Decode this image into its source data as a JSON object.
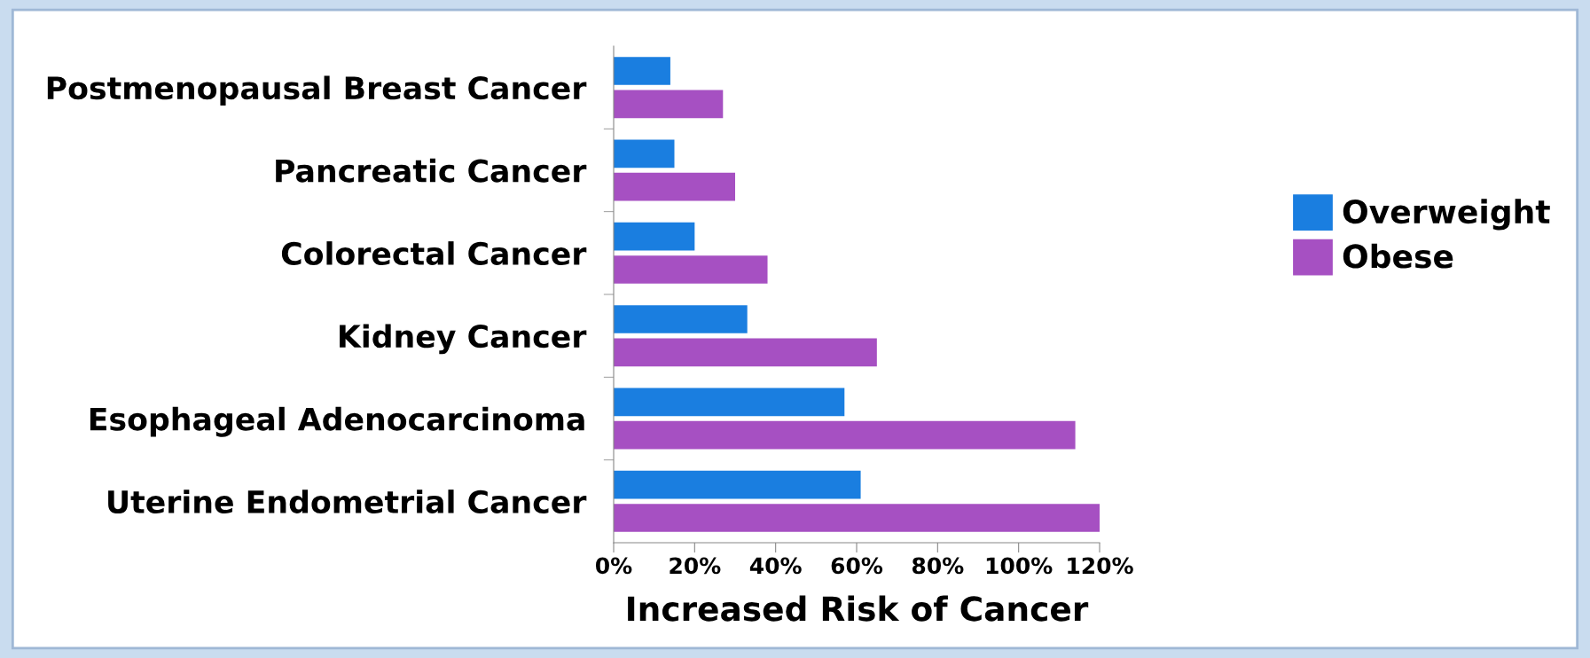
{
  "chart_data": {
    "type": "bar",
    "orientation": "horizontal",
    "xlabel": "Increased Risk of Cancer",
    "categories": [
      "Postmenopausal Breast Cancer",
      "Pancreatic Cancer",
      "Colorectal Cancer",
      "Kidney Cancer",
      "Esophageal Adenocarcinoma",
      "Uterine Endometrial Cancer"
    ],
    "series": [
      {
        "name": "Overweight",
        "color": "#1a7ee0",
        "values": [
          14,
          15,
          20,
          33,
          57,
          61
        ]
      },
      {
        "name": "Obese",
        "color": "#a650c2",
        "values": [
          27,
          30,
          38,
          65,
          114,
          120
        ]
      }
    ],
    "xlim": [
      0,
      120
    ],
    "xticks": [
      {
        "value": 0,
        "label": "0%"
      },
      {
        "value": 20,
        "label": "20%"
      },
      {
        "value": 40,
        "label": "40%"
      },
      {
        "value": 60,
        "label": "60%"
      },
      {
        "value": 80,
        "label": "80%"
      },
      {
        "value": 100,
        "label": "100%"
      },
      {
        "value": 120,
        "label": "120%"
      }
    ],
    "legend": "right",
    "grid": false
  }
}
